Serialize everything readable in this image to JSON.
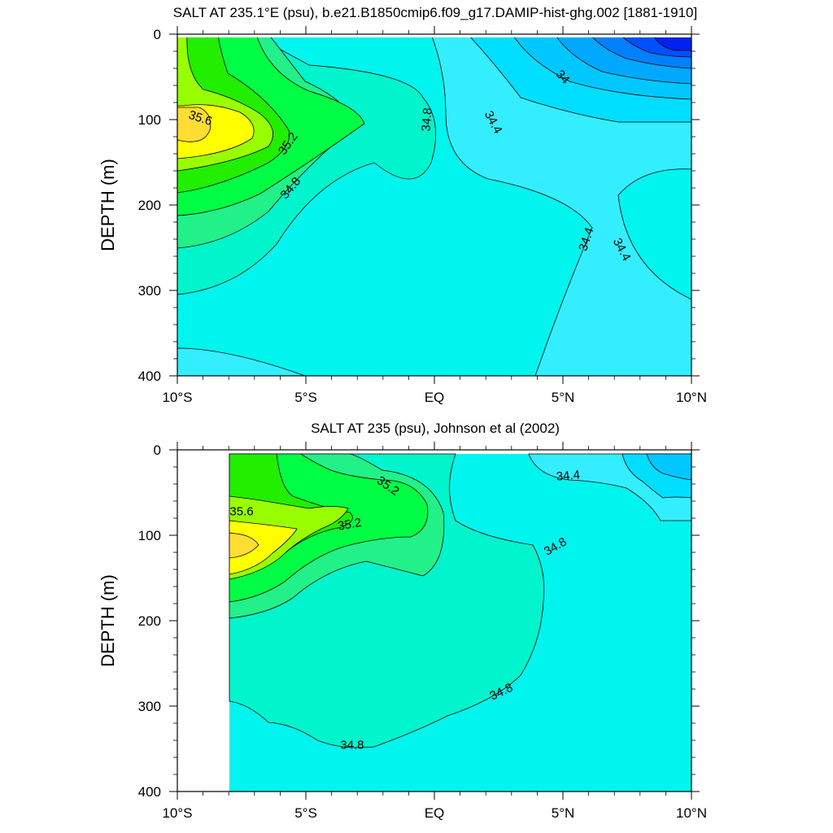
{
  "chart_data": [
    {
      "type": "contour",
      "title": "SALT AT 235.1°E (psu), b.e21.B1850cmip6.f09_g17.DAMIP-hist-ghg.002 [1881-1910]",
      "ylabel": "DEPTH (m)",
      "xlabel": "",
      "xlim": [
        -10,
        10
      ],
      "ylim": [
        400,
        0
      ],
      "y_reversed": true,
      "x_ticks": [
        {
          "value": -10,
          "label": "10°S"
        },
        {
          "value": -5,
          "label": "5°S"
        },
        {
          "value": 0,
          "label": "EQ"
        },
        {
          "value": 5,
          "label": "5°N"
        },
        {
          "value": 10,
          "label": "10°N"
        }
      ],
      "y_ticks": [
        0,
        100,
        200,
        300,
        400
      ],
      "contour_interval": 0.2,
      "fill_levels": [
        {
          "value": 33.2,
          "color": "#0022ee"
        },
        {
          "value": 33.4,
          "color": "#0050ff"
        },
        {
          "value": 33.6,
          "color": "#0080ff"
        },
        {
          "value": 33.8,
          "color": "#00a8ff"
        },
        {
          "value": 34.0,
          "color": "#00c8ff"
        },
        {
          "value": 34.2,
          "color": "#00deff"
        },
        {
          "value": 34.4,
          "color": "#33eeff"
        },
        {
          "value": 34.6,
          "color": "#00f5ee"
        },
        {
          "value": 34.8,
          "color": "#00f5cc"
        },
        {
          "value": 35.0,
          "color": "#22f088"
        },
        {
          "value": 35.2,
          "color": "#00ff44"
        },
        {
          "value": 35.4,
          "color": "#22ee00"
        },
        {
          "value": 35.6,
          "color": "#99ff00"
        },
        {
          "value": 35.8,
          "color": "#ffff00"
        },
        {
          "value": 36.0,
          "color": "#ffdd33"
        }
      ],
      "contour_labels": [
        {
          "text": "35.6",
          "x": -9.1,
          "y": 98,
          "angle": 18
        },
        {
          "text": "35.2",
          "x": -5.7,
          "y": 128,
          "angle": -55
        },
        {
          "text": "34.8",
          "x": -5.6,
          "y": 180,
          "angle": -50
        },
        {
          "text": "34.8",
          "x": -0.3,
          "y": 100,
          "angle": -85
        },
        {
          "text": "34.4",
          "x": 2.3,
          "y": 103,
          "angle": 62
        },
        {
          "text": "34",
          "x": 5.0,
          "y": 50,
          "angle": 48
        },
        {
          "text": "34.4",
          "x": 5.9,
          "y": 240,
          "angle": -72
        },
        {
          "text": "34.4",
          "x": 7.3,
          "y": 252,
          "angle": 62
        }
      ]
    },
    {
      "type": "contour",
      "title": "SALT AT 235 (psu), Johnson et al (2002)",
      "ylabel": "DEPTH (m)",
      "xlabel": "",
      "xlim": [
        -10,
        10
      ],
      "ylim": [
        400,
        0
      ],
      "y_reversed": true,
      "data_x_start": -8,
      "x_ticks": [
        {
          "value": -10,
          "label": "10°S"
        },
        {
          "value": -5,
          "label": "5°S"
        },
        {
          "value": 0,
          "label": "EQ"
        },
        {
          "value": 5,
          "label": "5°N"
        },
        {
          "value": 10,
          "label": "10°N"
        }
      ],
      "y_ticks": [
        0,
        100,
        200,
        300,
        400
      ],
      "contour_labels": [
        {
          "text": "35.2",
          "x": -1.8,
          "y": 42,
          "angle": 35
        },
        {
          "text": "34.4",
          "x": 5.2,
          "y": 30,
          "angle": -5
        },
        {
          "text": "35.6",
          "x": -7.5,
          "y": 72,
          "angle": 0
        },
        {
          "text": "35.2",
          "x": -3.3,
          "y": 87,
          "angle": -10
        },
        {
          "text": "34.8",
          "x": 4.7,
          "y": 113,
          "angle": -30
        },
        {
          "text": "34.8",
          "x": 2.6,
          "y": 283,
          "angle": -25
        },
        {
          "text": "34.8",
          "x": -3.2,
          "y": 345,
          "angle": 0
        }
      ]
    }
  ]
}
